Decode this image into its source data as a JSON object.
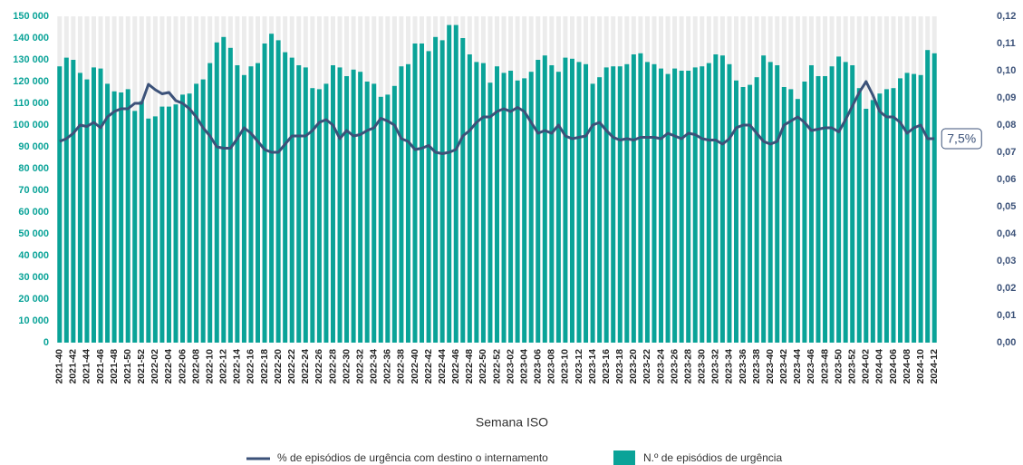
{
  "chart_data": {
    "type": "bar-line",
    "x_label": "Semana ISO",
    "categories": [
      "2021-40",
      null,
      "2021-42",
      null,
      "2021-44",
      null,
      "2021-46",
      null,
      "2021-48",
      null,
      "2021-50",
      null,
      "2021-52",
      null,
      "2022-02",
      null,
      "2022-04",
      null,
      "2022-06",
      null,
      "2022-08",
      null,
      "2022-10",
      null,
      "2022-12",
      null,
      "2022-14",
      null,
      "2022-16",
      null,
      "2022-18",
      null,
      "2022-20",
      null,
      "2022-22",
      null,
      "2022-24",
      null,
      "2022-26",
      null,
      "2022-28",
      null,
      "2022-30",
      null,
      "2022-32",
      null,
      "2022-34",
      null,
      "2022-36",
      null,
      "2022-38",
      null,
      "2022-40",
      null,
      "2022-42",
      null,
      "2022-44",
      null,
      "2022-46",
      null,
      "2022-48",
      null,
      "2022-50",
      null,
      "2022-52",
      null,
      "2023-02",
      null,
      "2023-04",
      null,
      "2023-06",
      null,
      "2023-08",
      null,
      "2023-10",
      null,
      "2023-12",
      null,
      "2023-14",
      null,
      "2023-16",
      null,
      "2023-18",
      null,
      "2023-20",
      null,
      "2023-22",
      null,
      "2023-24",
      null,
      "2023-26",
      null,
      "2023-28",
      null,
      "2023-30",
      null,
      "2023-32",
      null,
      "2023-34",
      null,
      "2023-36",
      null,
      "2023-38",
      null,
      "2023-40",
      null,
      "2023-42",
      null,
      "2023-44",
      null,
      "2023-46",
      null,
      "2023-48",
      null,
      "2023-50",
      null,
      "2023-52",
      null,
      "2024-02",
      null,
      "2024-04",
      null,
      "2024-06",
      null,
      "2024-08",
      null,
      "2024-10",
      null,
      "2024-12"
    ],
    "series": [
      {
        "name": "% de episódios de urgência com destino o internamento",
        "kind": "line",
        "axis": "y2",
        "color": "#3c5279",
        "values": [
          0.074,
          0.075,
          0.077,
          0.08,
          0.0795,
          0.081,
          0.079,
          0.083,
          0.085,
          0.086,
          0.086,
          0.088,
          0.088,
          0.095,
          0.093,
          0.0915,
          0.092,
          0.089,
          0.088,
          0.086,
          0.083,
          0.079,
          0.076,
          0.072,
          0.0715,
          0.0715,
          0.075,
          0.079,
          0.077,
          0.074,
          0.071,
          0.07,
          0.07,
          0.073,
          0.076,
          0.076,
          0.076,
          0.078,
          0.081,
          0.082,
          0.08,
          0.075,
          0.078,
          0.076,
          0.0765,
          0.078,
          0.079,
          0.0825,
          0.0815,
          0.08,
          0.075,
          0.074,
          0.071,
          0.0715,
          0.0725,
          0.07,
          0.0695,
          0.07,
          0.071,
          0.076,
          0.078,
          0.081,
          0.083,
          0.083,
          0.085,
          0.086,
          0.085,
          0.0865,
          0.085,
          0.081,
          0.077,
          0.078,
          0.077,
          0.08,
          0.076,
          0.075,
          0.0755,
          0.076,
          0.08,
          0.081,
          0.078,
          0.0755,
          0.0745,
          0.075,
          0.0745,
          0.0755,
          0.0755,
          0.0755,
          0.075,
          0.077,
          0.076,
          0.075,
          0.077,
          0.0765,
          0.075,
          0.0745,
          0.0745,
          0.073,
          0.075,
          0.079,
          0.08,
          0.08,
          0.077,
          0.074,
          0.073,
          0.074,
          0.08,
          0.0815,
          0.083,
          0.081,
          0.078,
          0.0785,
          0.079,
          0.079,
          0.0775,
          0.082,
          0.087,
          0.092,
          0.096,
          0.091,
          0.085,
          0.083,
          0.083,
          0.081,
          0.077,
          0.079,
          0.08,
          0.075,
          0.075
        ],
        "value_labels": [
          null,
          null,
          null,
          null,
          null,
          null,
          null,
          null,
          null,
          null,
          null,
          null,
          null,
          null,
          null,
          null,
          null,
          null,
          null,
          null,
          null,
          null,
          null,
          null,
          null,
          null,
          null,
          null,
          null,
          null,
          null,
          null,
          null,
          null,
          null,
          null,
          null,
          null,
          null,
          null,
          null,
          null,
          null,
          null,
          null,
          null,
          null,
          null,
          null,
          null,
          null,
          null,
          null,
          null,
          null,
          null,
          null,
          null,
          null,
          null,
          null,
          null,
          null,
          null,
          null,
          null,
          null,
          null,
          null,
          null,
          null,
          null,
          null,
          null,
          null,
          null,
          null,
          null,
          null,
          null,
          null,
          null,
          null,
          null,
          null,
          null,
          null,
          null,
          null,
          null,
          null,
          null,
          null,
          null,
          null,
          null,
          null,
          null,
          null,
          null,
          null,
          null,
          null,
          null,
          null,
          null,
          null,
          null,
          null,
          null,
          null,
          null,
          null,
          null,
          null,
          null,
          null,
          null,
          null,
          null,
          null,
          null,
          null,
          null,
          null,
          null,
          null,
          null,
          "7,5%"
        ]
      },
      {
        "name": "N.º de episódios de urgência",
        "kind": "bar",
        "axis": "y",
        "color": "#0aa398",
        "values": [
          127000,
          131000,
          130000,
          124000,
          121000,
          126500,
          126000,
          119000,
          115500,
          115000,
          116500,
          106500,
          111000,
          103000,
          104000,
          108500,
          108500,
          109500,
          114000,
          114500,
          119000,
          121000,
          128500,
          138000,
          140500,
          135500,
          127500,
          123000,
          127000,
          128500,
          137500,
          142000,
          139000,
          133500,
          131000,
          127500,
          126500,
          117000,
          116500,
          119000,
          127500,
          126500,
          122500,
          125500,
          124500,
          120000,
          119000,
          113000,
          114000,
          118000,
          127000,
          128000,
          137500,
          137500,
          134000,
          140500,
          139000,
          146000,
          146000,
          140000,
          132500,
          129000,
          128500,
          119500,
          127000,
          124000,
          125000,
          120500,
          121500,
          124500,
          130000,
          132000,
          127500,
          124500,
          131000,
          130500,
          129000,
          128000,
          119000,
          122000,
          126500,
          127000,
          127000,
          128000,
          132500,
          133000,
          129000,
          128000,
          126000,
          123500,
          126000,
          125000,
          125000,
          126500,
          127000,
          128500,
          132500,
          132000,
          128000,
          120500,
          117500,
          118500,
          122000,
          132000,
          129000,
          127500,
          117500,
          116500,
          112000,
          120000,
          127500,
          122500,
          122500,
          127000,
          131500,
          129000,
          127500,
          117000,
          107500,
          111500,
          114500,
          116500,
          117000,
          121500,
          124000,
          123500,
          123000,
          134500,
          133000
        ]
      }
    ],
    "ylim": [
      0,
      150000
    ],
    "yticks": [
      0,
      {
        "value": 10000,
        "label": "10 000"
      },
      {
        "value": 20000,
        "label": "20 000"
      },
      {
        "value": 30000,
        "label": "30 000"
      },
      {
        "value": 40000,
        "label": "40 000"
      },
      {
        "value": 50000,
        "label": "50 000"
      },
      {
        "value": 60000,
        "label": "60 000"
      },
      {
        "value": 70000,
        "label": "70 000"
      },
      {
        "value": 80000,
        "label": "80 000"
      },
      {
        "value": 90000,
        "label": "90 000"
      },
      {
        "value": 100000,
        "label": "100 000"
      },
      {
        "value": 110000,
        "label": "110 000"
      },
      {
        "value": 120000,
        "label": "120 000"
      },
      {
        "value": 130000,
        "label": "130 000"
      },
      {
        "value": 140000,
        "label": "140 000"
      },
      {
        "value": 150000,
        "label": "150 000"
      }
    ],
    "y2lim": [
      0,
      0.12
    ],
    "y2ticks": [
      {
        "value": 0,
        "label": "0,00"
      },
      {
        "value": 0.01,
        "label": "0,01"
      },
      {
        "value": 0.02,
        "label": "0,02"
      },
      {
        "value": 0.03,
        "label": "0,03"
      },
      {
        "value": 0.04,
        "label": "0,04"
      },
      {
        "value": 0.05,
        "label": "0,05"
      },
      {
        "value": 0.06,
        "label": "0,06"
      },
      {
        "value": 0.07,
        "label": "0,07"
      },
      {
        "value": 0.08,
        "label": "0,08"
      },
      {
        "value": 0.09,
        "label": "0,09"
      },
      {
        "value": 0.1,
        "label": "0,10"
      },
      {
        "value": 0.11,
        "label": "0,11"
      },
      {
        "value": 0.12,
        "label": "0,12"
      }
    ]
  }
}
